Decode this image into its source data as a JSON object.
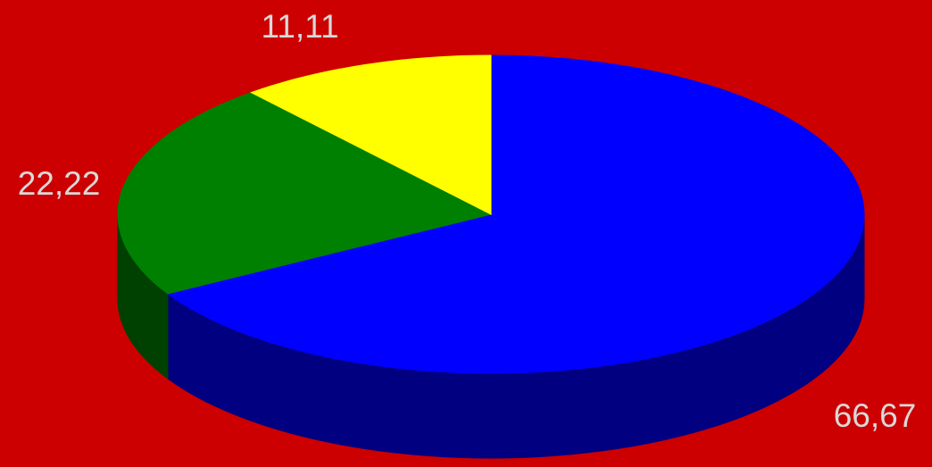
{
  "chart_data": {
    "type": "pie",
    "style": "3d",
    "title": "",
    "legend": "none",
    "slices": [
      {
        "value": 66.67,
        "label": "66,67",
        "color": "#0000ff",
        "side_color": "#000080"
      },
      {
        "value": 22.22,
        "label": "22,22",
        "color": "#008000",
        "side_color": "#004000"
      },
      {
        "value": 11.11,
        "label": "11,11",
        "color": "#ffff00",
        "side_color": "#808000"
      }
    ],
    "background_color": "#cc0000",
    "label_color": "#d9d9d9"
  }
}
